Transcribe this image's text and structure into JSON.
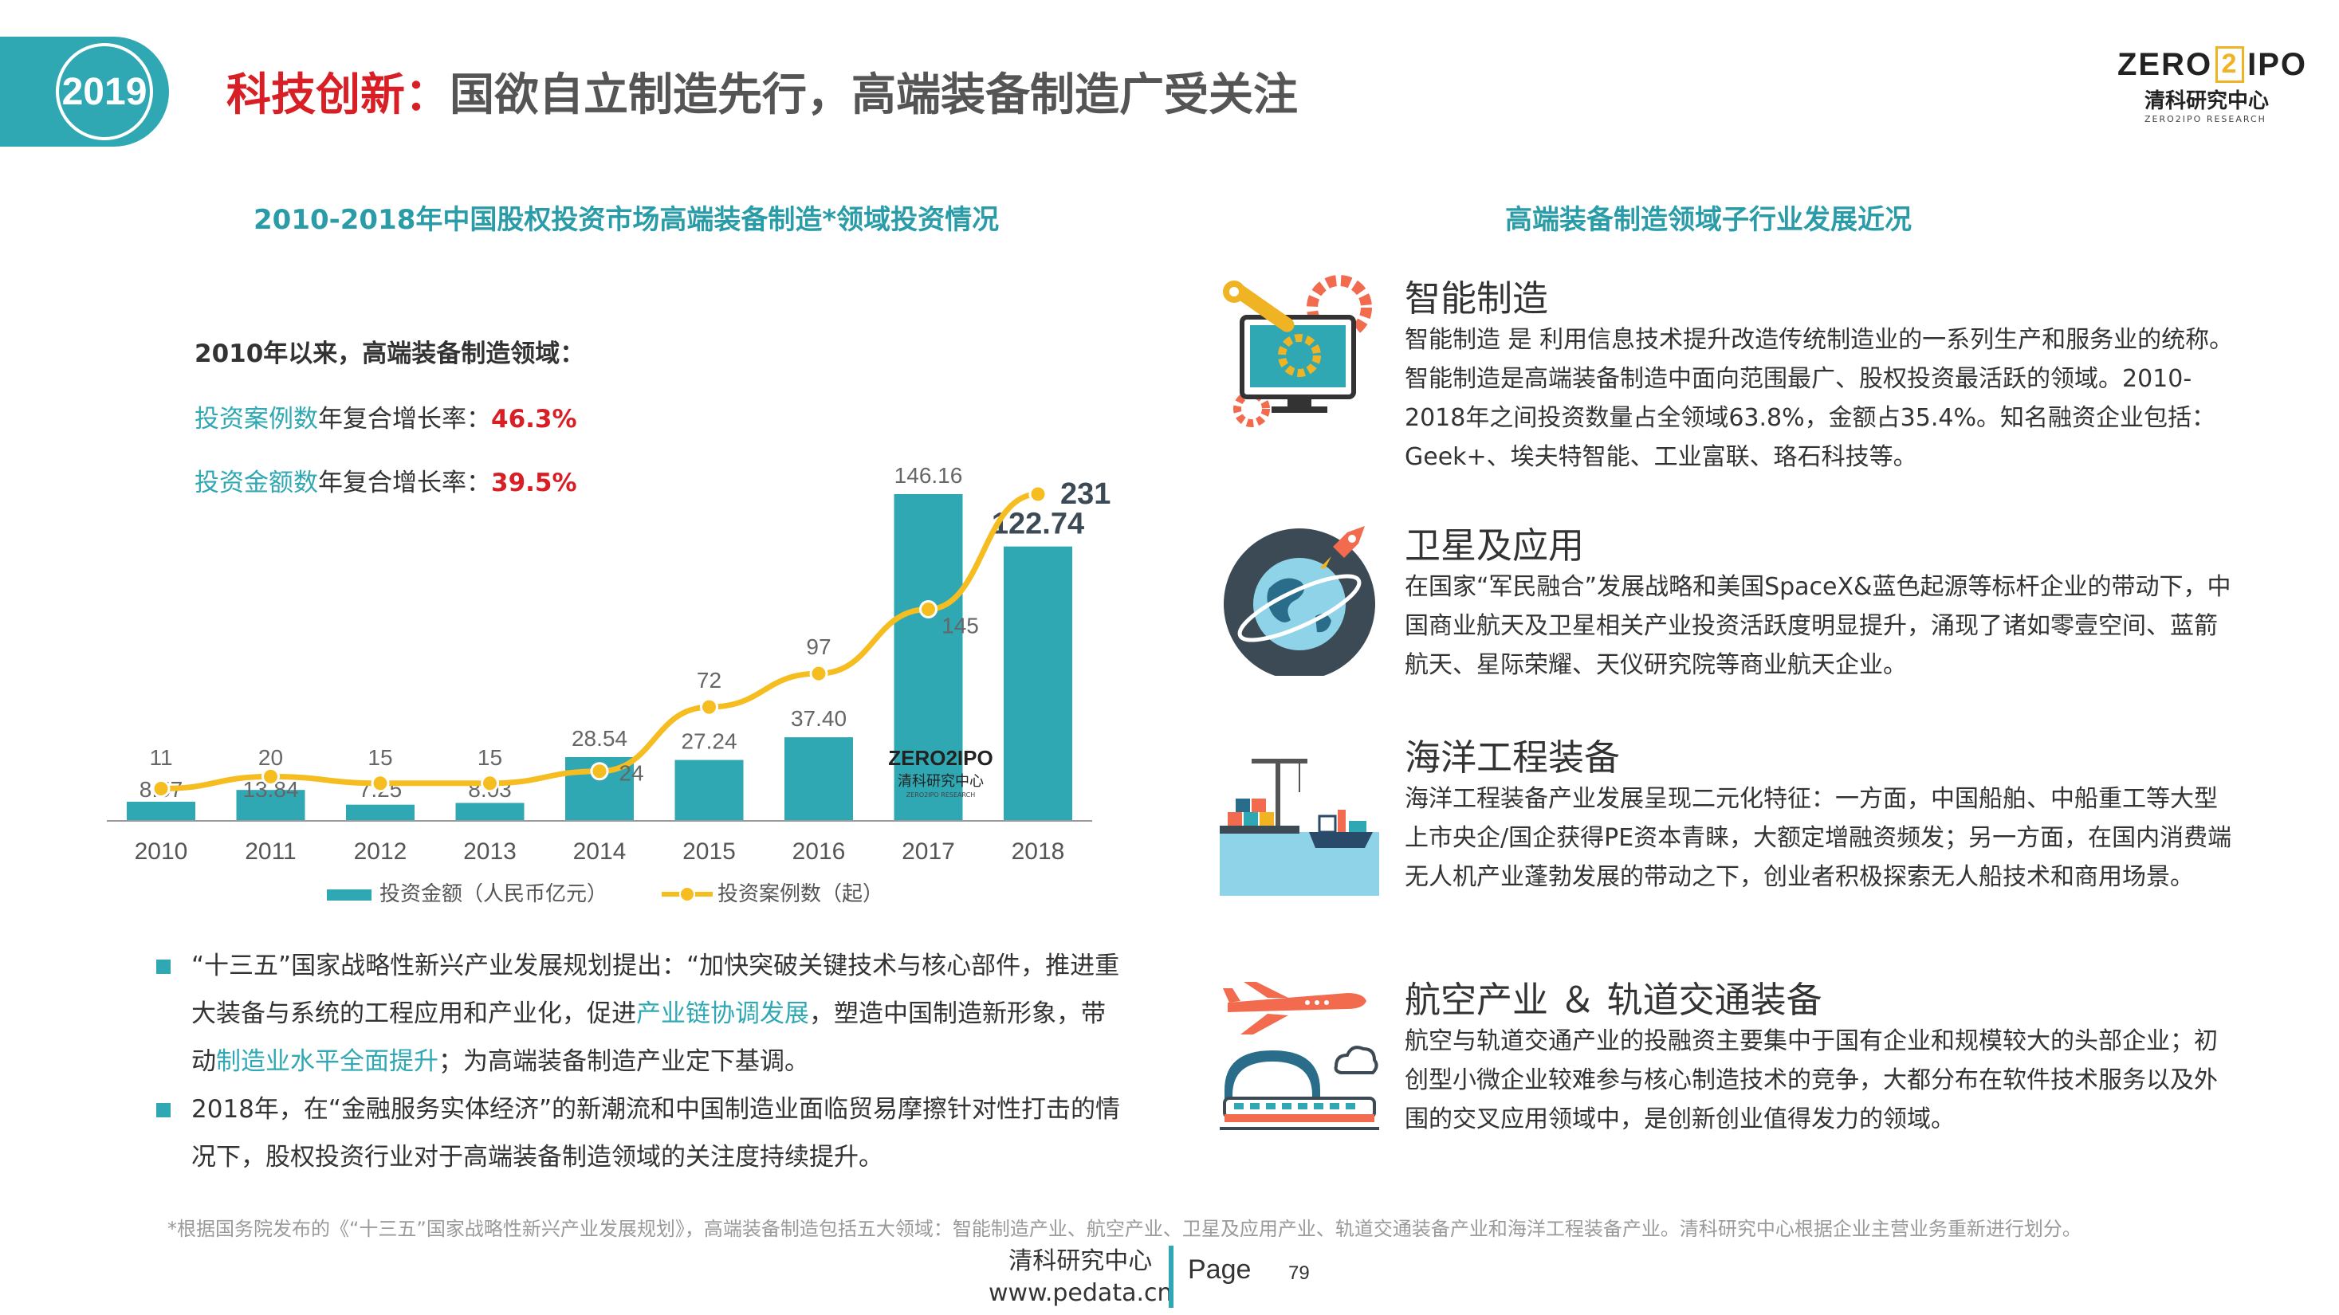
{
  "header": {
    "year": "2019",
    "title_accent": "科技创新：",
    "title_rest": "国欲自立制造先行，高端装备制造广受关注"
  },
  "logo": {
    "word_left": "ZERO",
    "word_mid": "2",
    "word_right": "IPO",
    "cn": "清科研究中心",
    "en": "ZERO2IPO RESEARCH"
  },
  "left": {
    "section_title": "2010-2018年中国股权投资市场高端装备制造*领域投资情况",
    "note_heading": "2010年以来，高端装备制造领域：",
    "note1_label": "投资案例数",
    "note1_text": "年复合增长率：",
    "note1_value": "46.3%",
    "note2_label": "投资金额数",
    "note2_text": "年复合增长率：",
    "note2_value": "39.5%"
  },
  "chart_data": {
    "type": "bar",
    "categories": [
      "2010",
      "2011",
      "2012",
      "2013",
      "2014",
      "2015",
      "2016",
      "2017",
      "2018"
    ],
    "series": [
      {
        "name": "投资金额（人民币亿元）",
        "type": "bar",
        "values": [
          8.57,
          13.84,
          7.25,
          8.03,
          28.54,
          27.24,
          37.4,
          146.16,
          122.74
        ],
        "labels": [
          "8.57",
          "13.84",
          "7.25",
          "8.03",
          "28.54",
          "27.24",
          "37.40",
          "146.16",
          "122.74"
        ]
      },
      {
        "name": "投资案例数（起）",
        "type": "line",
        "values": [
          11,
          20,
          15,
          15,
          24,
          72,
          97,
          145,
          231
        ],
        "labels": [
          "11",
          "20",
          "15",
          "15",
          "24",
          "72",
          "97",
          "145",
          "231"
        ]
      }
    ],
    "watermark": {
      "word": "ZERO2IPO",
      "cn": "清科研究中心",
      "en": "ZERO2IPO RESEARCH"
    },
    "colors": {
      "bar": "#2fa8b3",
      "line": "#f5bd1f",
      "axis": "#999999"
    },
    "legend_position": "bottom",
    "grid": false
  },
  "bullets": {
    "b1_a": "“十三五”国家战略性新兴产业发展规划提出：“加快突破关键技术与核心部件，推进重大装备与系统的工程应用和产业化，促进",
    "b1_hl1": "产业链协调发展",
    "b1_b": "，塑造中国制造新形象，带动",
    "b1_hl2": "制造业水平全面提升",
    "b1_c": "；为高端装备制造产业定下基调。",
    "b2": "2018年，在“金融服务实体经济”的新潮流和中国制造业面临贸易摩擦针对性打击的情况下，股权投资行业对于高端装备制造领域的关注度持续提升。"
  },
  "right": {
    "section_title": "高端装备制造领域子行业发展近况",
    "items": [
      {
        "icon": "smart-manufacturing-icon",
        "name": "智能制造",
        "desc": "智能制造 是 利用信息技术提升改造传统制造业的一系列生产和服务业的统称。智能制造是高端装备制造中面向范围最广、股权投资最活跃的领域。2010-2018年之间投资数量占全领域63.8%，金额占35.4%。知名融资企业包括：Geek+、埃夫特智能、工业富联、珞石科技等。"
      },
      {
        "icon": "satellite-globe-icon",
        "name": "卫星及应用",
        "desc": "在国家“军民融合”发展战略和美国SpaceX&蓝色起源等标杆企业的带动下，中国商业航天及卫星相关产业投资活跃度明显提升，涌现了诸如零壹空间、蓝箭航天、星际荣耀、天仪研究院等商业航天企业。"
      },
      {
        "icon": "ocean-port-icon",
        "name": "海洋工程装备",
        "desc": "海洋工程装备产业发展呈现二元化特征：一方面，中国船舶、中船重工等大型上市央企/国企获得PE资本青睐，大额定增融资频发；另一方面，在国内消费端无人机产业蓬勃发展的带动之下，创业者积极探索无人船技术和商用场景。"
      },
      {
        "icon": "plane-train-icon",
        "name": "航空产业 ＆ 轨道交通装备",
        "desc": "航空与轨道交通产业的投融资主要集中于国有企业和规模较大的头部企业；初创型小微企业较难参与核心制造技术的竞争，大都分布在软件技术服务以及外围的交叉应用领域中，是创新创业值得发力的领域。"
      }
    ]
  },
  "footer": {
    "note": "*根据国务院发布的《“十三五”国家战略性新兴产业发展规划》，高端装备制造包括五大领域：智能制造产业、航空产业、卫星及应用产业、轨道交通装备产业和海洋工程装备产业。清科研究中心根据企业主营业务重新进行划分。",
    "org": "清科研究中心",
    "site": "www.pedata.cn",
    "page_label": "Page",
    "page_num": "79"
  }
}
